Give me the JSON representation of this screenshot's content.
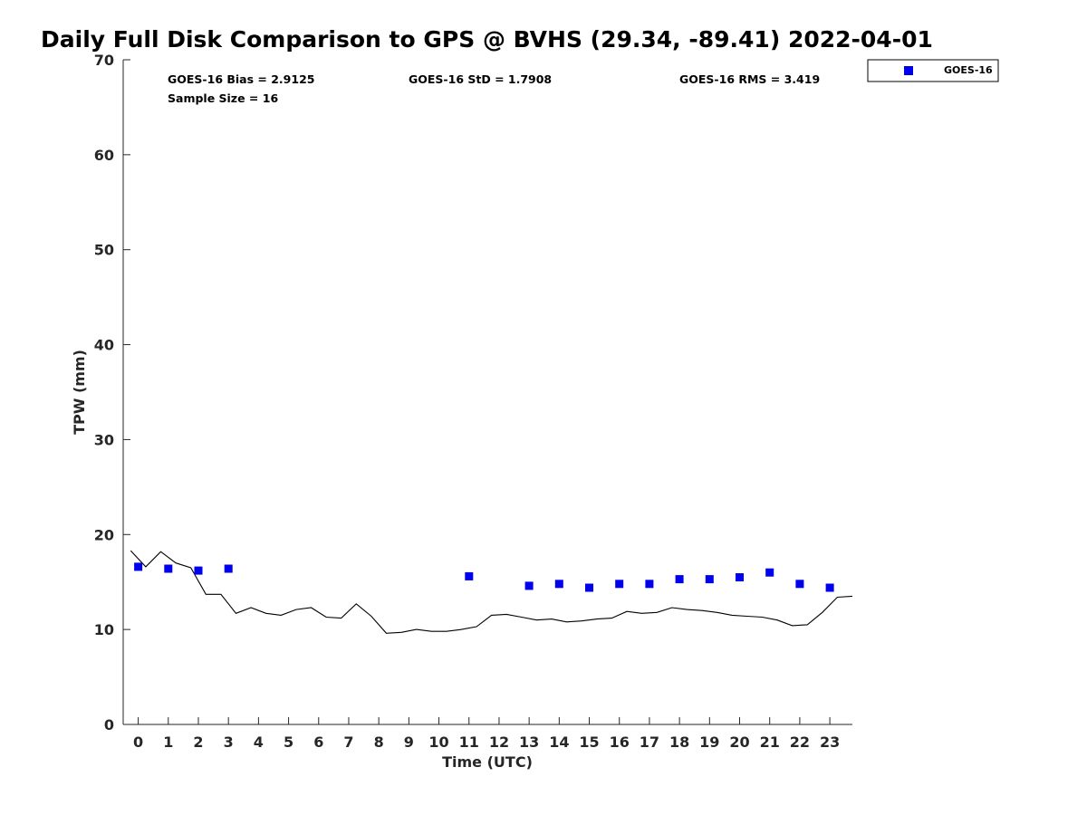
{
  "chart_data": {
    "type": "scatter",
    "title": "Daily Full Disk Comparison to GPS @ BVHS (29.34, -89.41) 2022-04-01",
    "xlabel": "Time (UTC)",
    "ylabel": "TPW (mm)",
    "xlim": [
      -0.5,
      23.75
    ],
    "ylim": [
      0,
      70
    ],
    "x_ticks": [
      0,
      1,
      2,
      3,
      4,
      5,
      6,
      7,
      8,
      9,
      10,
      11,
      12,
      13,
      14,
      15,
      16,
      17,
      18,
      19,
      20,
      21,
      22,
      23
    ],
    "y_ticks": [
      0,
      10,
      20,
      30,
      40,
      50,
      60,
      70
    ],
    "grid": false,
    "legend": {
      "placement": "top-right-outside",
      "entries": [
        "GOES-16"
      ]
    },
    "stats": {
      "bias": "GOES-16 Bias = 2.9125",
      "std": "GOES-16 StD = 1.7908",
      "rms": "GOES-16 RMS = 3.419",
      "sample": "Sample Size = 16"
    },
    "series": [
      {
        "name": "GOES-16",
        "type": "scatter",
        "color": "#0000ee",
        "x": [
          0,
          1,
          2,
          3,
          11,
          13,
          14,
          15,
          16,
          17,
          18,
          19,
          20,
          21,
          22,
          23
        ],
        "y": [
          16.6,
          16.4,
          16.2,
          16.4,
          15.6,
          14.6,
          14.8,
          14.4,
          14.8,
          14.8,
          15.3,
          15.3,
          15.5,
          16.0,
          14.8,
          14.4
        ]
      },
      {
        "type": "line",
        "color": "#000000",
        "x": [
          -0.25,
          0.25,
          0.75,
          1.25,
          1.75,
          2.25,
          2.75,
          3.25,
          3.75,
          4.25,
          4.75,
          5.25,
          5.75,
          6.25,
          6.75,
          7.25,
          7.75,
          8.25,
          8.75,
          9.25,
          9.75,
          10.25,
          10.75,
          11.25,
          11.75,
          12.25,
          12.75,
          13.25,
          13.75,
          14.25,
          14.75,
          15.25,
          15.75,
          16.25,
          16.75,
          17.25,
          17.75,
          18.25,
          18.75,
          19.25,
          19.75,
          20.25,
          20.75,
          21.25,
          21.75,
          22.25,
          22.75,
          23.25,
          23.75
        ],
        "y": [
          18.3,
          16.6,
          18.2,
          17.0,
          16.5,
          13.7,
          13.7,
          11.7,
          12.3,
          11.7,
          11.5,
          12.1,
          12.3,
          11.3,
          11.2,
          12.7,
          11.4,
          9.6,
          9.7,
          10.0,
          9.8,
          9.8,
          10.0,
          10.3,
          11.5,
          11.6,
          11.3,
          11.0,
          11.1,
          10.8,
          10.9,
          11.1,
          11.2,
          11.9,
          11.7,
          11.8,
          12.3,
          12.1,
          12.0,
          11.8,
          11.5,
          11.4,
          11.3,
          11.0,
          10.4,
          10.5,
          11.8,
          13.4,
          13.5
        ]
      }
    ]
  }
}
